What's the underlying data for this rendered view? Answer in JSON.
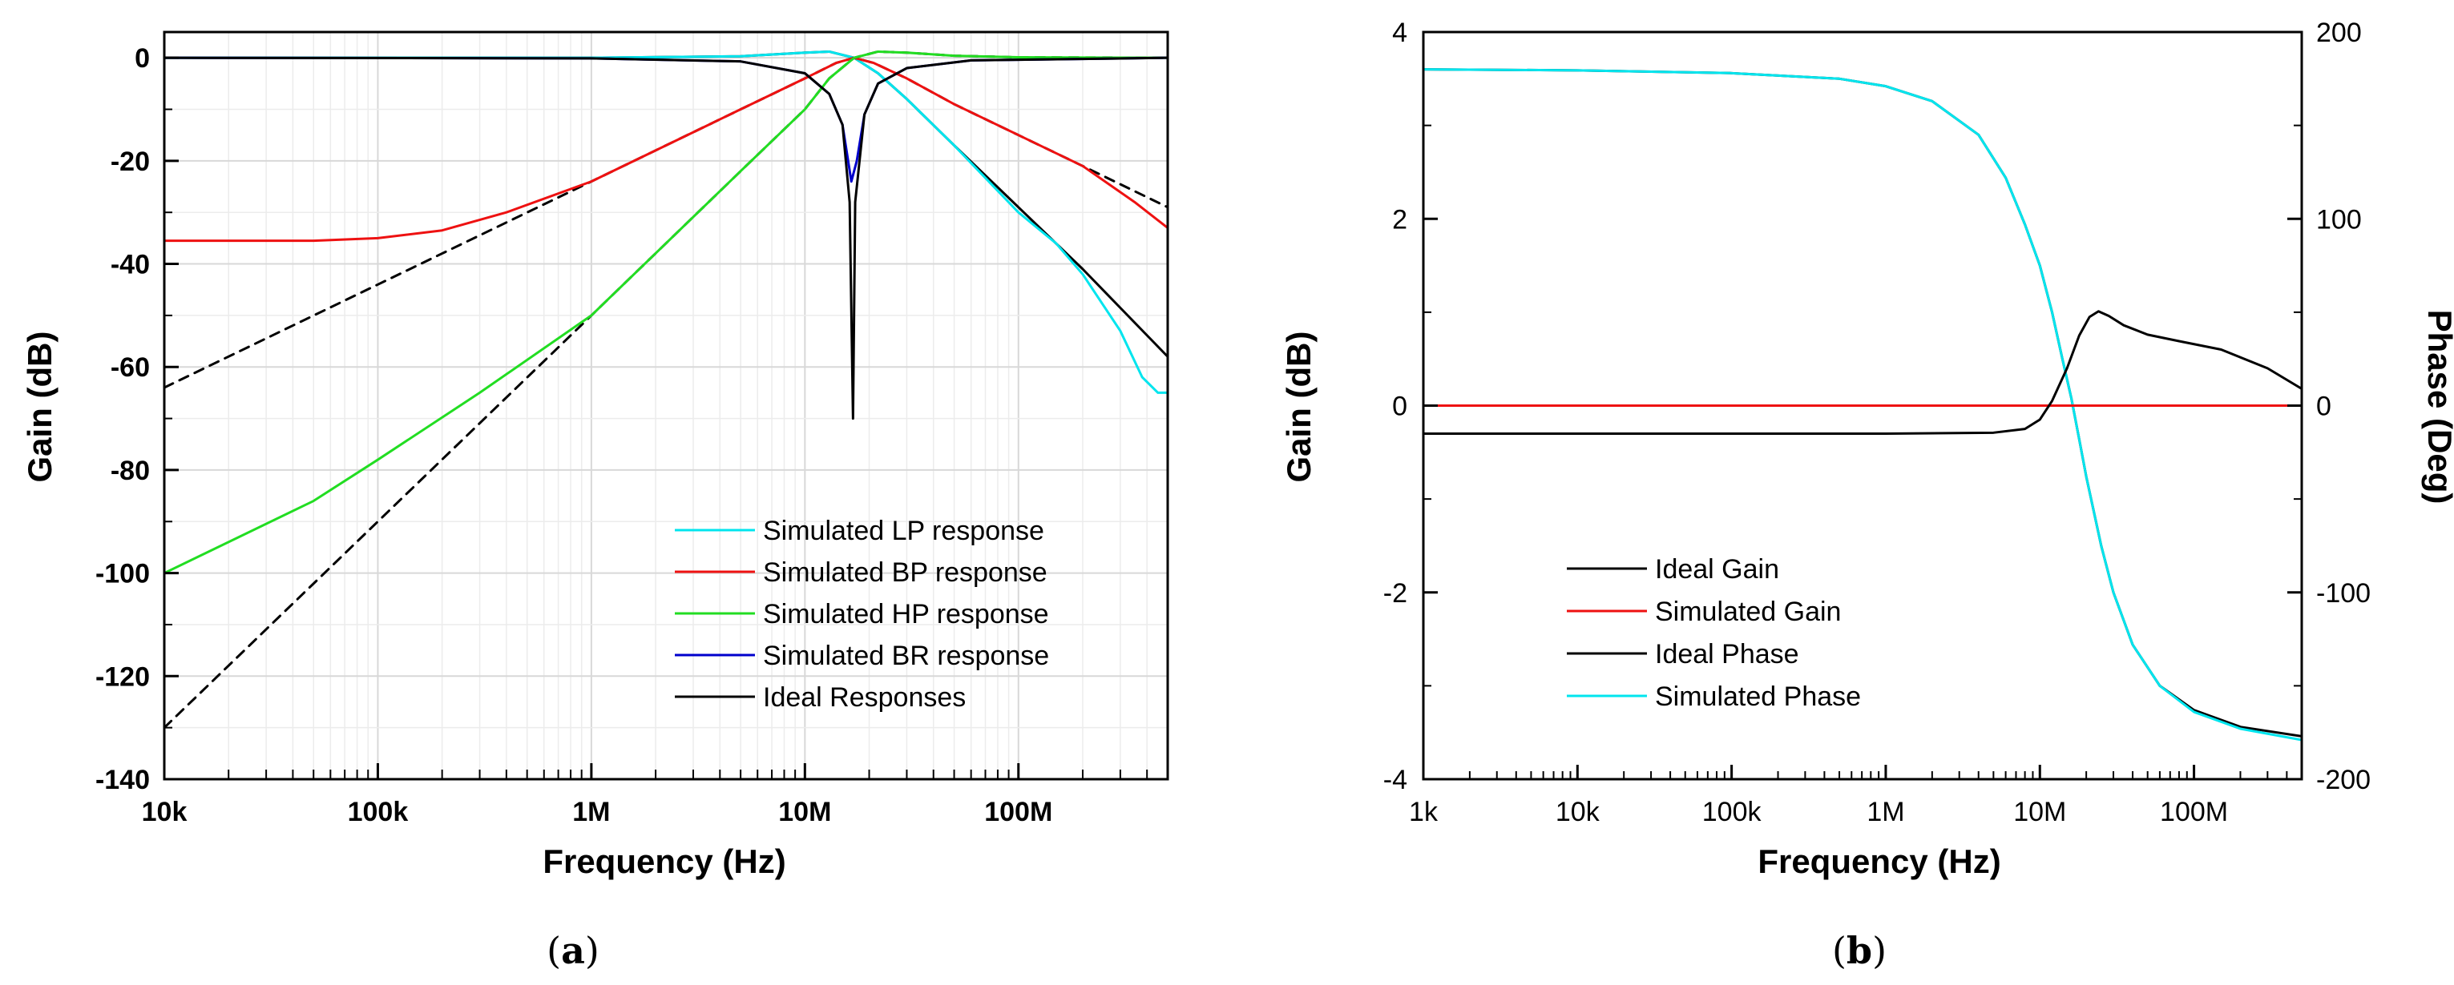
{
  "chart_data": [
    {
      "type": "line",
      "panel_label": "(a)",
      "caption_open": "(",
      "caption_letter": "a",
      "caption_close": ")",
      "xlabel": "Frequency (Hz)",
      "ylabel": "Gain (dB)",
      "xscale": "log",
      "xlim": [
        10000,
        500000000
      ],
      "ylim": [
        -140,
        5
      ],
      "xticks": [
        {
          "value": 10000,
          "label": "10k"
        },
        {
          "value": 100000,
          "label": "100k"
        },
        {
          "value": 1000000,
          "label": "1M"
        },
        {
          "value": 10000000,
          "label": "10M"
        },
        {
          "value": 100000000,
          "label": "100M"
        }
      ],
      "yticks": [
        {
          "value": 0,
          "label": "0"
        },
        {
          "value": -20,
          "label": "-20"
        },
        {
          "value": -40,
          "label": "-40"
        },
        {
          "value": -60,
          "label": "-60"
        },
        {
          "value": -80,
          "label": "-80"
        },
        {
          "value": -100,
          "label": "-100"
        },
        {
          "value": -120,
          "label": "-120"
        },
        {
          "value": -140,
          "label": "-140"
        }
      ],
      "grid": true,
      "legend_position": "bottom-right",
      "legend": [
        {
          "label": "Simulated LP response",
          "color": "#00e5ee",
          "dashed": false
        },
        {
          "label": "Simulated BP response",
          "color": "#ee1111",
          "dashed": false
        },
        {
          "label": "Simulated HP response",
          "color": "#22dd22",
          "dashed": false
        },
        {
          "label": "Simulated BR response",
          "color": "#0000cc",
          "dashed": false
        },
        {
          "label": "Ideal Responses",
          "color": "#000000",
          "dashed": false
        }
      ],
      "series": [
        {
          "name": "Ideal LP",
          "color": "#000000",
          "dashed": false,
          "width": 3,
          "points": [
            [
              10000,
              0
            ],
            [
              1000000,
              0
            ],
            [
              5000000,
              0.3
            ],
            [
              10000000,
              1
            ],
            [
              13000000,
              1.2
            ],
            [
              17000000,
              0
            ],
            [
              22000000,
              -3
            ],
            [
              30000000,
              -8
            ],
            [
              50000000,
              -17
            ],
            [
              100000000,
              -29
            ],
            [
              200000000,
              -41
            ],
            [
              500000000,
              -58
            ]
          ]
        },
        {
          "name": "Simulated LP",
          "color": "#00e5ee",
          "dashed": false,
          "width": 3,
          "points": [
            [
              10000,
              0
            ],
            [
              1000000,
              0
            ],
            [
              5000000,
              0.3
            ],
            [
              10000000,
              1
            ],
            [
              13000000,
              1.2
            ],
            [
              17000000,
              0
            ],
            [
              22000000,
              -3
            ],
            [
              30000000,
              -8
            ],
            [
              50000000,
              -17
            ],
            [
              100000000,
              -30
            ],
            [
              150000000,
              -36
            ],
            [
              200000000,
              -42
            ],
            [
              300000000,
              -53
            ],
            [
              380000000,
              -62
            ],
            [
              450000000,
              -65
            ],
            [
              500000000,
              -65
            ]
          ]
        },
        {
          "name": "Ideal BP",
          "color": "#000000",
          "dashed": true,
          "width": 3,
          "points": [
            [
              10000,
              -64
            ],
            [
              100000,
              -44
            ],
            [
              1000000,
              -24
            ],
            [
              5000000,
              -10
            ],
            [
              10000000,
              -4
            ],
            [
              14000000,
              -1
            ],
            [
              17000000,
              0
            ],
            [
              21000000,
              -1
            ],
            [
              30000000,
              -4
            ],
            [
              50000000,
              -9
            ],
            [
              100000000,
              -15
            ],
            [
              200000000,
              -21
            ],
            [
              500000000,
              -29
            ]
          ]
        },
        {
          "name": "Simulated BP",
          "color": "#ee1111",
          "dashed": false,
          "width": 3,
          "points": [
            [
              10000,
              -35.5
            ],
            [
              50000,
              -35.5
            ],
            [
              100000,
              -35
            ],
            [
              200000,
              -33.5
            ],
            [
              400000,
              -30
            ],
            [
              1000000,
              -24
            ],
            [
              5000000,
              -10
            ],
            [
              10000000,
              -4
            ],
            [
              14000000,
              -1
            ],
            [
              17000000,
              0
            ],
            [
              21000000,
              -1
            ],
            [
              30000000,
              -4
            ],
            [
              50000000,
              -9
            ],
            [
              100000000,
              -15
            ],
            [
              200000000,
              -21
            ],
            [
              350000000,
              -28
            ],
            [
              500000000,
              -33
            ]
          ]
        },
        {
          "name": "Ideal HP",
          "color": "#000000",
          "dashed": true,
          "width": 3,
          "points": [
            [
              10000,
              -130
            ],
            [
              100000,
              -90
            ],
            [
              1000000,
              -50
            ],
            [
              5000000,
              -22
            ],
            [
              10000000,
              -10
            ],
            [
              13000000,
              -4
            ],
            [
              17000000,
              0
            ],
            [
              22000000,
              1.2
            ],
            [
              30000000,
              1
            ],
            [
              50000000,
              0.4
            ],
            [
              100000000,
              0.1
            ],
            [
              500000000,
              0
            ]
          ]
        },
        {
          "name": "Simulated HP",
          "color": "#22dd22",
          "dashed": false,
          "width": 3,
          "points": [
            [
              10000,
              -100
            ],
            [
              50000,
              -86
            ],
            [
              100000,
              -78
            ],
            [
              300000,
              -65
            ],
            [
              1000000,
              -50
            ],
            [
              5000000,
              -22
            ],
            [
              10000000,
              -10
            ],
            [
              13000000,
              -4
            ],
            [
              17000000,
              0
            ],
            [
              22000000,
              1.2
            ],
            [
              30000000,
              1
            ],
            [
              50000000,
              0.4
            ],
            [
              100000000,
              0.1
            ],
            [
              500000000,
              0
            ]
          ]
        },
        {
          "name": "Simulated BR",
          "color": "#0000cc",
          "dashed": false,
          "width": 3,
          "points": [
            [
              10000,
              0
            ],
            [
              1000000,
              -0.1
            ],
            [
              5000000,
              -0.7
            ],
            [
              10000000,
              -3
            ],
            [
              13000000,
              -7
            ],
            [
              15000000,
              -13
            ],
            [
              16500000,
              -24
            ],
            [
              17500000,
              -20
            ],
            [
              19000000,
              -11
            ],
            [
              22000000,
              -5
            ],
            [
              30000000,
              -2
            ],
            [
              60000000,
              -0.5
            ],
            [
              500000000,
              0
            ]
          ]
        },
        {
          "name": "Ideal BR",
          "color": "#000000",
          "dashed": false,
          "width": 3,
          "points": [
            [
              10000,
              0
            ],
            [
              1000000,
              -0.1
            ],
            [
              5000000,
              -0.7
            ],
            [
              10000000,
              -3
            ],
            [
              13000000,
              -7
            ],
            [
              15000000,
              -13
            ],
            [
              16200000,
              -28
            ],
            [
              16800000,
              -70
            ],
            [
              17200000,
              -28
            ],
            [
              19000000,
              -11
            ],
            [
              22000000,
              -5
            ],
            [
              30000000,
              -2
            ],
            [
              60000000,
              -0.5
            ],
            [
              500000000,
              0
            ]
          ]
        }
      ]
    },
    {
      "type": "line",
      "panel_label": "(b)",
      "caption_open": "(",
      "caption_letter": "b",
      "caption_close": ")",
      "xlabel": "Frequency (Hz)",
      "ylabel": "Gain (dB)",
      "y2label": "Phase (Deg)",
      "xscale": "log",
      "xlim": [
        1000,
        500000000
      ],
      "ylim": [
        -4,
        4
      ],
      "y2lim": [
        -200,
        200
      ],
      "xticks": [
        {
          "value": 1000,
          "label": "1k"
        },
        {
          "value": 10000,
          "label": "10k"
        },
        {
          "value": 100000,
          "label": "100k"
        },
        {
          "value": 1000000,
          "label": "1M"
        },
        {
          "value": 10000000,
          "label": "10M"
        },
        {
          "value": 100000000,
          "label": "100M"
        }
      ],
      "yticks": [
        {
          "value": 4,
          "label": "4"
        },
        {
          "value": 2,
          "label": "2"
        },
        {
          "value": 0,
          "label": "0"
        },
        {
          "value": -2,
          "label": "-2"
        },
        {
          "value": -4,
          "label": "-4"
        }
      ],
      "y2ticks": [
        {
          "value": 200,
          "label": "200"
        },
        {
          "value": 100,
          "label": "100"
        },
        {
          "value": 0,
          "label": "0"
        },
        {
          "value": -100,
          "label": "-100"
        },
        {
          "value": -200,
          "label": "-200"
        }
      ],
      "grid": false,
      "legend_position": "bottom-left",
      "legend": [
        {
          "label": "Ideal Gain",
          "color": "#000000"
        },
        {
          "label": "Simulated Gain",
          "color": "#ee1111"
        },
        {
          "label": "Ideal Phase",
          "color": "#000000"
        },
        {
          "label": "Simulated Phase",
          "color": "#00e5ee"
        }
      ],
      "series": [
        {
          "name": "Ideal Phase",
          "axis": "y2",
          "color": "#000000",
          "width": 3,
          "points": [
            [
              1000,
              180
            ],
            [
              10000,
              179.5
            ],
            [
              100000,
              178
            ],
            [
              500000,
              175
            ],
            [
              1000000,
              171
            ],
            [
              2000000,
              163
            ],
            [
              4000000,
              145
            ],
            [
              6000000,
              122
            ],
            [
              8000000,
              97
            ],
            [
              10000000,
              75
            ],
            [
              12000000,
              50
            ],
            [
              14000000,
              25
            ],
            [
              16000000,
              4
            ],
            [
              18000000,
              -18
            ],
            [
              20000000,
              -38
            ],
            [
              25000000,
              -75
            ],
            [
              30000000,
              -100
            ],
            [
              40000000,
              -128
            ],
            [
              60000000,
              -150
            ],
            [
              100000000,
              -163
            ],
            [
              200000000,
              -172
            ],
            [
              500000000,
              -177
            ]
          ]
        },
        {
          "name": "Simulated Phase",
          "axis": "y2",
          "color": "#00e5ee",
          "width": 3,
          "points": [
            [
              1000,
              180
            ],
            [
              10000,
              179.5
            ],
            [
              100000,
              178
            ],
            [
              500000,
              175
            ],
            [
              1000000,
              171
            ],
            [
              2000000,
              163
            ],
            [
              4000000,
              145
            ],
            [
              6000000,
              122
            ],
            [
              8000000,
              97
            ],
            [
              10000000,
              75
            ],
            [
              12000000,
              50
            ],
            [
              14000000,
              25
            ],
            [
              16000000,
              4
            ],
            [
              18000000,
              -18
            ],
            [
              20000000,
              -38
            ],
            [
              25000000,
              -75
            ],
            [
              30000000,
              -100
            ],
            [
              40000000,
              -128
            ],
            [
              60000000,
              -150
            ],
            [
              100000000,
              -164
            ],
            [
              200000000,
              -173
            ],
            [
              500000000,
              -179
            ]
          ]
        },
        {
          "name": "Simulated Gain",
          "axis": "y",
          "color": "#ee1111",
          "width": 3,
          "points": [
            [
              1000,
              0
            ],
            [
              500000000,
              0
            ]
          ]
        },
        {
          "name": "Ideal Gain",
          "axis": "y",
          "color": "#000000",
          "width": 3,
          "points": [
            [
              1000,
              -0.3
            ],
            [
              1000000,
              -0.3
            ],
            [
              5000000,
              -0.29
            ],
            [
              8000000,
              -0.25
            ],
            [
              10000000,
              -0.15
            ],
            [
              12000000,
              0.05
            ],
            [
              15000000,
              0.4
            ],
            [
              18000000,
              0.75
            ],
            [
              21000000,
              0.95
            ],
            [
              24000000,
              1.01
            ],
            [
              28000000,
              0.96
            ],
            [
              35000000,
              0.86
            ],
            [
              50000000,
              0.76
            ],
            [
              80000000,
              0.69
            ],
            [
              150000000,
              0.6
            ],
            [
              300000000,
              0.4
            ],
            [
              500000000,
              0.18
            ]
          ]
        }
      ]
    }
  ]
}
